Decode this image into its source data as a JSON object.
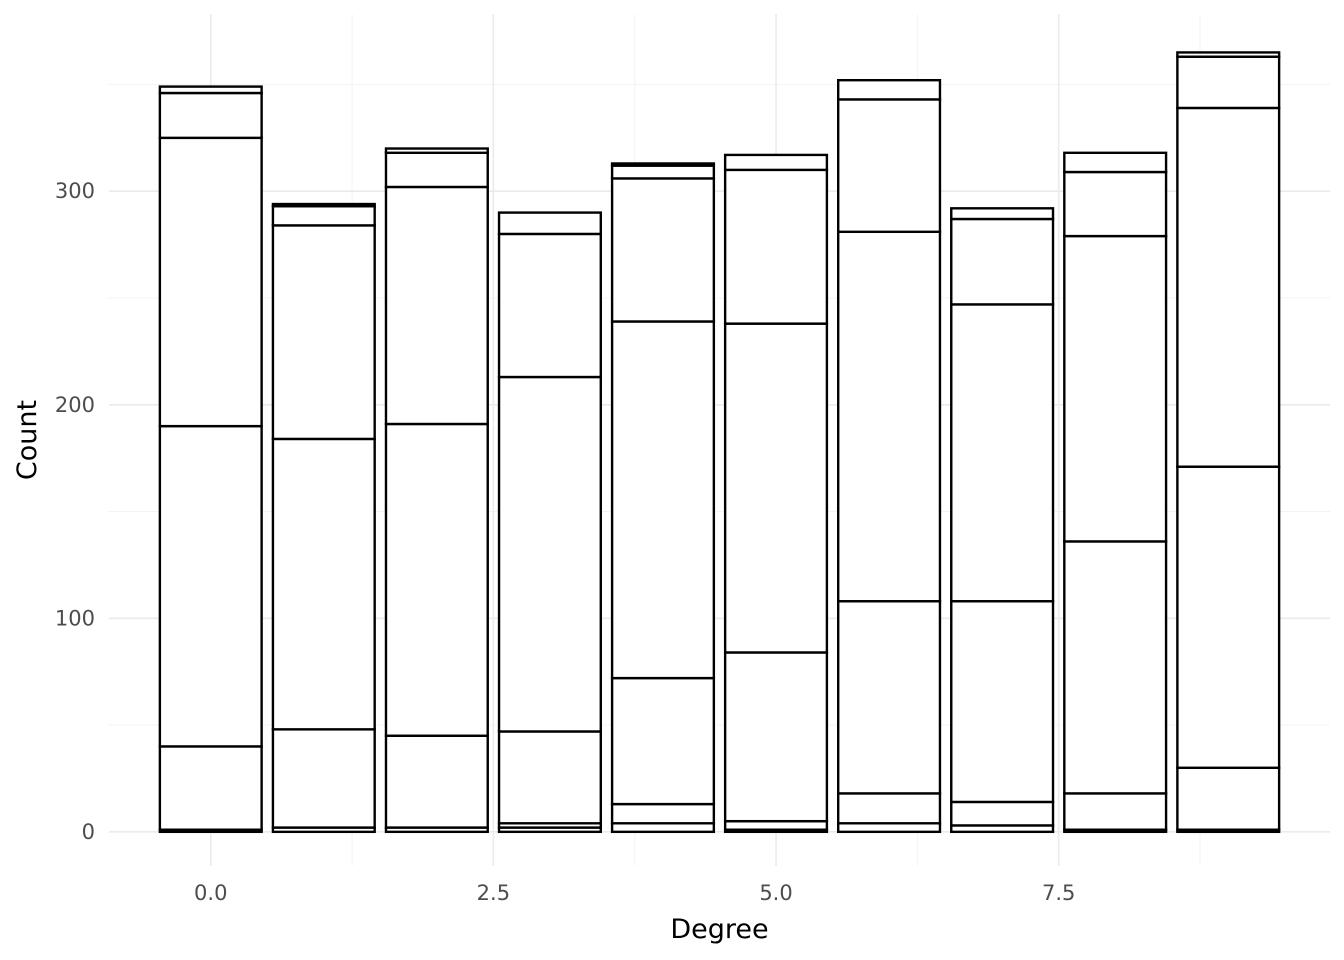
{
  "chart_data": {
    "type": "bar",
    "stacked": true,
    "title": "",
    "xlabel": "Degree",
    "ylabel": "Count",
    "xlim": [
      -0.9,
      9.9
    ],
    "ylim": [
      -16,
      383
    ],
    "x_ticks": [
      "0.0",
      "2.5",
      "5.0",
      "7.5"
    ],
    "x_tick_values": [
      0,
      2.5,
      5,
      7.5
    ],
    "y_ticks": [
      "0",
      "100",
      "200",
      "300"
    ],
    "y_tick_values": [
      0,
      100,
      200,
      300
    ],
    "bar_width": 0.9,
    "grid": true,
    "legend": "none",
    "bars": [
      {
        "x": 0,
        "boundaries": [
          0,
          1,
          40,
          190,
          325,
          346,
          349
        ]
      },
      {
        "x": 1,
        "boundaries": [
          0,
          2,
          48,
          184,
          284,
          293,
          294
        ]
      },
      {
        "x": 2,
        "boundaries": [
          0,
          2,
          45,
          191,
          302,
          318,
          320
        ]
      },
      {
        "x": 3,
        "boundaries": [
          0,
          2,
          4,
          47,
          213,
          280,
          290
        ]
      },
      {
        "x": 4,
        "boundaries": [
          0,
          4,
          13,
          72,
          239,
          306,
          312,
          313
        ]
      },
      {
        "x": 5,
        "boundaries": [
          0,
          1,
          5,
          84,
          238,
          310,
          317
        ]
      },
      {
        "x": 6,
        "boundaries": [
          0,
          4,
          18,
          108,
          281,
          343,
          352
        ]
      },
      {
        "x": 7,
        "boundaries": [
          0,
          3,
          14,
          108,
          247,
          287,
          292
        ]
      },
      {
        "x": 8,
        "boundaries": [
          0,
          1,
          18,
          136,
          279,
          309,
          318
        ]
      },
      {
        "x": 9,
        "boundaries": [
          0,
          1,
          30,
          171,
          339,
          363,
          365
        ]
      }
    ]
  }
}
